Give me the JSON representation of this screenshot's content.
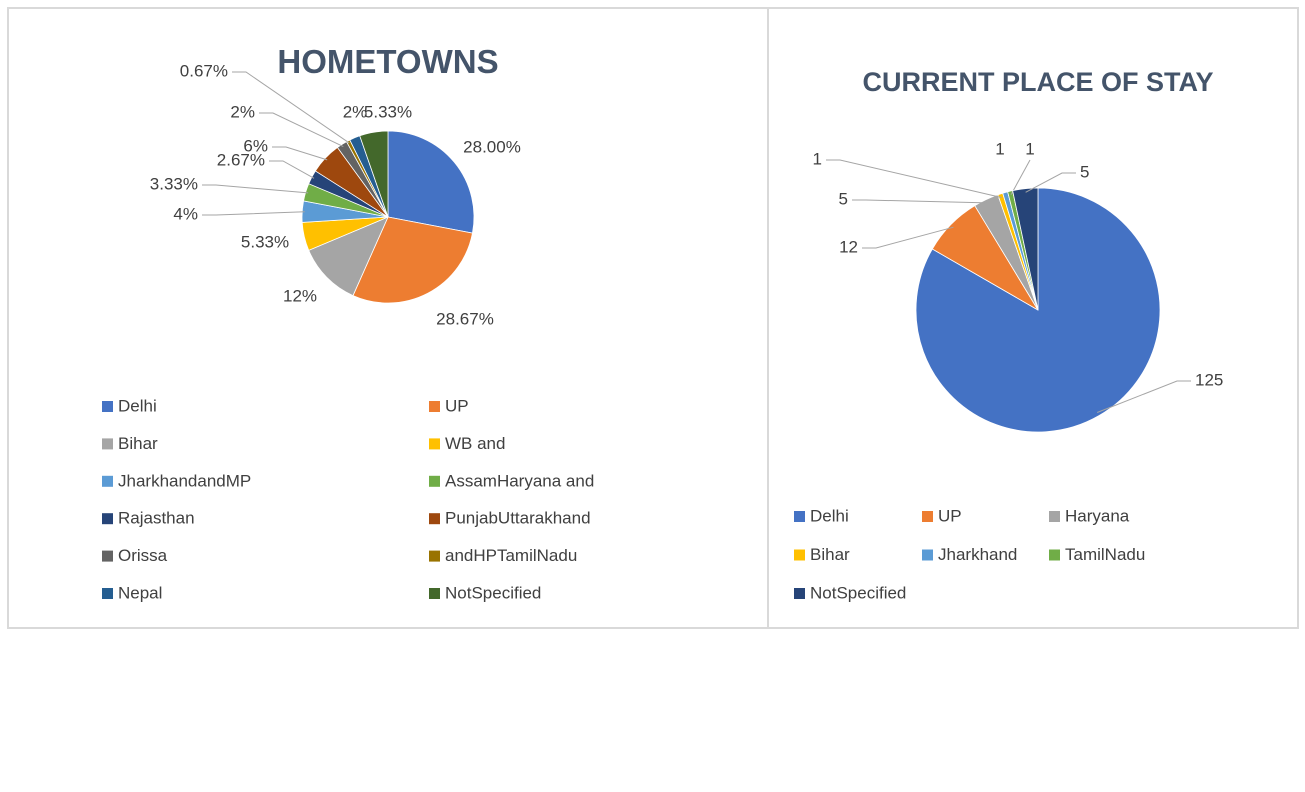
{
  "chart_data": [
    {
      "type": "pie",
      "title": "HOMETOWNS",
      "categories": [
        "Delhi",
        "UP",
        "Bihar",
        "WB and",
        "JharkhandandMP",
        "AssamHaryana and",
        "Rajasthan",
        "PunjabUttarakhand",
        "Orissa",
        "andHPTamilNadu",
        "Nepal",
        "NotSpecified"
      ],
      "values": [
        28,
        28.67,
        12,
        5.33,
        4,
        3.33,
        2.67,
        6,
        2,
        0.67,
        2,
        5.33
      ],
      "value_labels": [
        "28.00%",
        "28.67%",
        "12%",
        "5.33%",
        "4%",
        "3.33%",
        "2.67%",
        "6%",
        "2%",
        "0.67%",
        "2%",
        "5.33%"
      ],
      "colors": [
        "#4472c4",
        "#ed7d31",
        "#a5a5a5",
        "#ffc000",
        "#5b9bd5",
        "#70ad47",
        "#264478",
        "#9e480e",
        "#636363",
        "#997300",
        "#255e91",
        "#43682b"
      ]
    },
    {
      "type": "pie",
      "title": "CURRENT PLACE OF STAY",
      "categories": [
        "Delhi",
        "UP",
        "Haryana",
        "Bihar",
        "Jharkhand",
        "TamilNadu",
        "NotSpecified"
      ],
      "values": [
        125,
        12,
        5,
        1,
        1,
        1,
        5
      ],
      "colors": [
        "#4472c4",
        "#ed7d31",
        "#a5a5a5",
        "#ffc000",
        "#5b9bd5",
        "#70ad47",
        "#264478"
      ]
    }
  ]
}
